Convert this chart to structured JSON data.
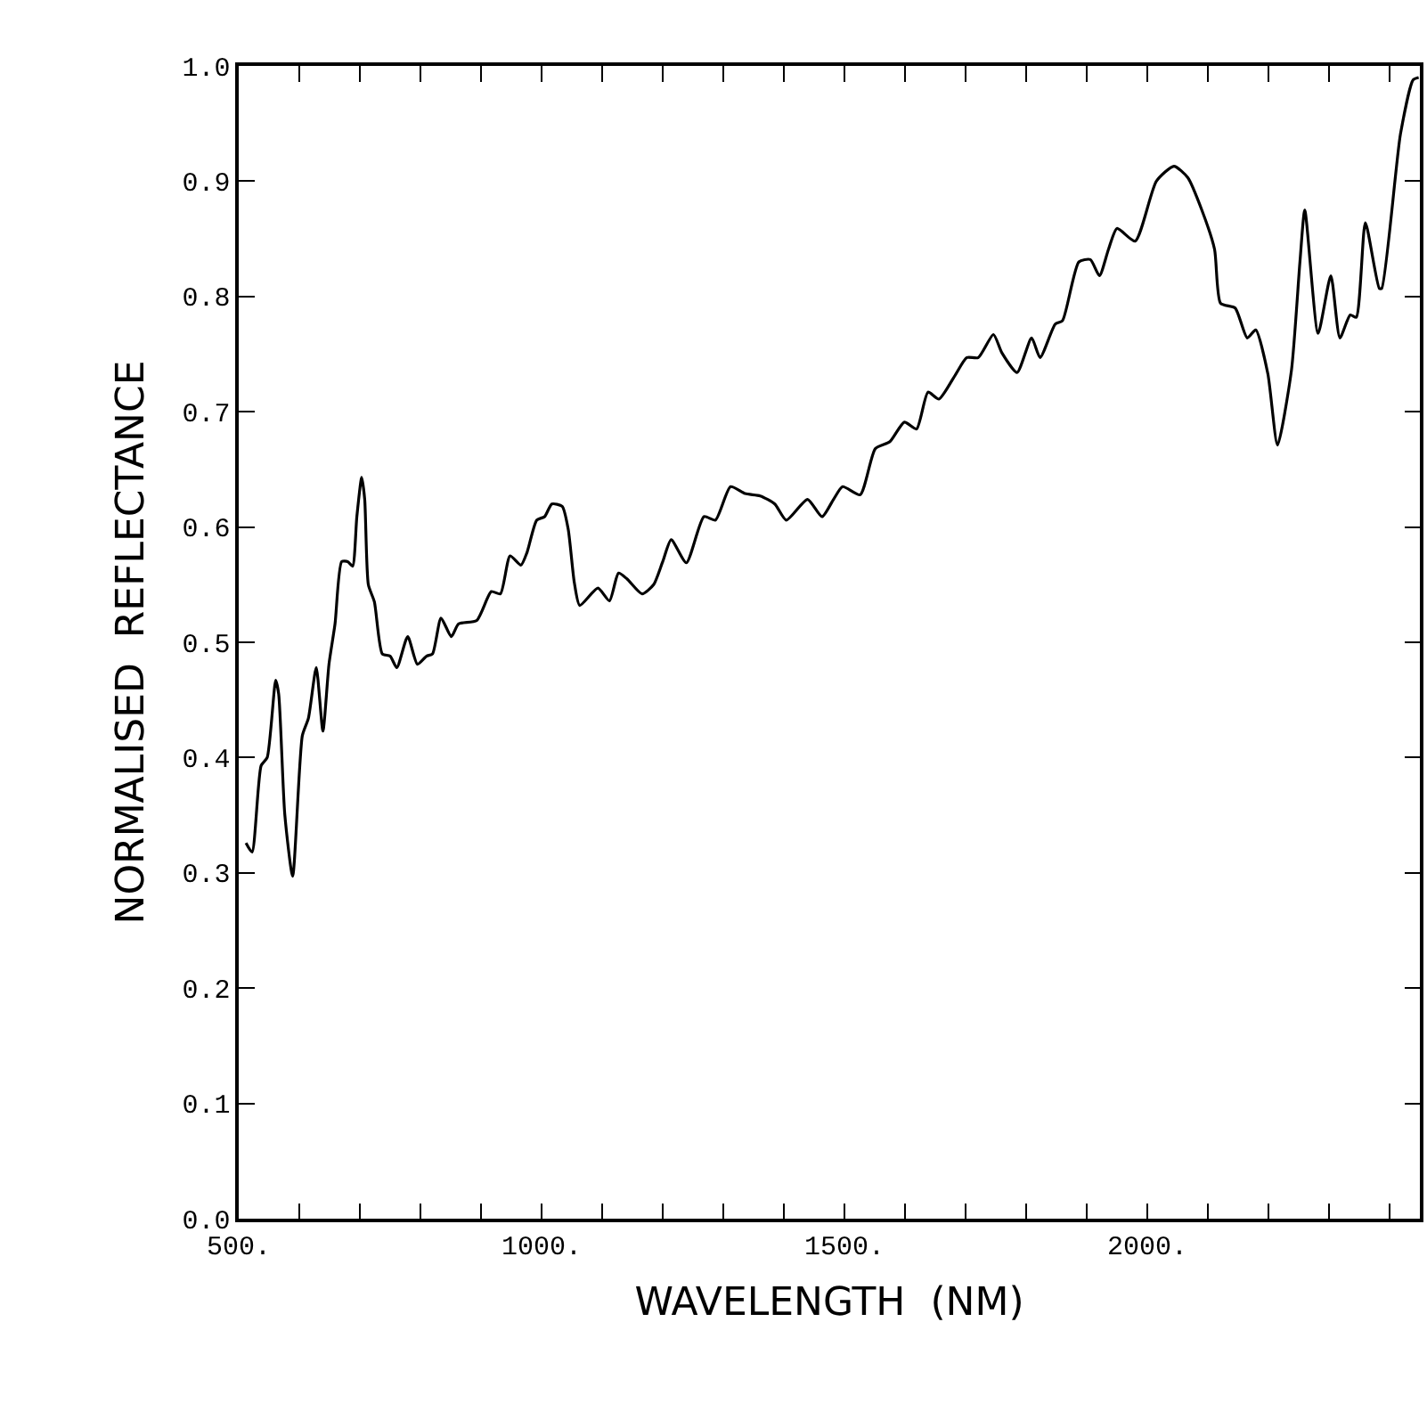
{
  "chart_data": {
    "type": "line",
    "xlabel": "WAVELENGTH  (NM)",
    "ylabel": "NORMALISED  REFLECTANCE",
    "x": [
      512,
      522,
      537,
      547,
      561,
      566,
      576,
      589,
      605,
      615,
      628,
      639,
      649,
      659,
      670,
      680,
      688,
      695,
      703,
      708,
      714,
      724,
      737,
      750,
      761,
      779,
      795,
      810,
      820,
      834,
      851,
      863,
      893,
      917,
      932,
      948,
      966,
      976,
      992,
      1005,
      1017,
      1034,
      1044,
      1054,
      1063,
      1093,
      1112,
      1127,
      1141,
      1166,
      1185,
      1200,
      1214,
      1239,
      1268,
      1287,
      1312,
      1336,
      1361,
      1385,
      1404,
      1439,
      1463,
      1482,
      1497,
      1526,
      1551,
      1575,
      1599,
      1619,
      1638,
      1656,
      1682,
      1702,
      1721,
      1746,
      1760,
      1785,
      1809,
      1823,
      1848,
      1860,
      1887,
      1906,
      1921,
      1936,
      1950,
      1980,
      2015,
      2044,
      2067,
      2090,
      2111,
      2121,
      2145,
      2165,
      2179,
      2199,
      2215,
      2238,
      2252,
      2260,
      2282,
      2303,
      2318,
      2335,
      2345,
      2360,
      2383,
      2387,
      2418,
      2439,
      2448
    ],
    "series": [
      {
        "color": "#000000",
        "values": [
          0.326,
          0.318,
          0.393,
          0.4,
          0.467,
          0.455,
          0.351,
          0.297,
          0.419,
          0.434,
          0.478,
          0.423,
          0.481,
          0.516,
          0.57,
          0.57,
          0.566,
          0.609,
          0.643,
          0.624,
          0.55,
          0.535,
          0.49,
          0.488,
          0.478,
          0.505,
          0.481,
          0.488,
          0.49,
          0.521,
          0.505,
          0.516,
          0.519,
          0.544,
          0.542,
          0.575,
          0.567,
          0.578,
          0.606,
          0.609,
          0.62,
          0.618,
          0.598,
          0.552,
          0.532,
          0.547,
          0.536,
          0.56,
          0.555,
          0.542,
          0.55,
          0.57,
          0.589,
          0.569,
          0.609,
          0.606,
          0.635,
          0.629,
          0.627,
          0.62,
          0.606,
          0.624,
          0.609,
          0.624,
          0.635,
          0.628,
          0.668,
          0.674,
          0.691,
          0.685,
          0.717,
          0.711,
          0.731,
          0.747,
          0.747,
          0.767,
          0.751,
          0.734,
          0.764,
          0.747,
          0.776,
          0.779,
          0.83,
          0.832,
          0.818,
          0.841,
          0.859,
          0.848,
          0.9,
          0.913,
          0.903,
          0.875,
          0.841,
          0.794,
          0.79,
          0.764,
          0.771,
          0.733,
          0.671,
          0.736,
          0.83,
          0.875,
          0.768,
          0.818,
          0.764,
          0.784,
          0.782,
          0.864,
          0.807,
          0.807,
          0.941,
          0.988,
          0.99
        ]
      }
    ],
    "xlim": [
      500,
      2450
    ],
    "ylim": [
      0,
      1
    ],
    "xticks": [
      {
        "value": 500,
        "label": "500."
      },
      {
        "value": 600,
        "label": null
      },
      {
        "value": 700,
        "label": null
      },
      {
        "value": 800,
        "label": null
      },
      {
        "value": 900,
        "label": null
      },
      {
        "value": 1000,
        "label": "1000."
      },
      {
        "value": 1100,
        "label": null
      },
      {
        "value": 1200,
        "label": null
      },
      {
        "value": 1300,
        "label": null
      },
      {
        "value": 1400,
        "label": null
      },
      {
        "value": 1500,
        "label": "1500."
      },
      {
        "value": 1600,
        "label": null
      },
      {
        "value": 1700,
        "label": null
      },
      {
        "value": 1800,
        "label": null
      },
      {
        "value": 1900,
        "label": null
      },
      {
        "value": 2000,
        "label": "2000."
      },
      {
        "value": 2100,
        "label": null
      },
      {
        "value": 2200,
        "label": null
      },
      {
        "value": 2300,
        "label": null
      },
      {
        "value": 2400,
        "label": null
      }
    ],
    "yticks": [
      {
        "value": 0,
        "label": "0.0"
      },
      {
        "value": 0.1,
        "label": "0.1"
      },
      {
        "value": 0.2,
        "label": "0.2"
      },
      {
        "value": 0.3,
        "label": "0.3"
      },
      {
        "value": 0.4,
        "label": "0.4"
      },
      {
        "value": 0.5,
        "label": "0.5"
      },
      {
        "value": 0.6,
        "label": "0.6"
      },
      {
        "value": 0.7,
        "label": "0.7"
      },
      {
        "value": 0.8,
        "label": "0.8"
      },
      {
        "value": 0.9,
        "label": "0.9"
      },
      {
        "value": 1.0,
        "label": "1.0"
      }
    ],
    "marker": "none",
    "line_style": "solid"
  }
}
